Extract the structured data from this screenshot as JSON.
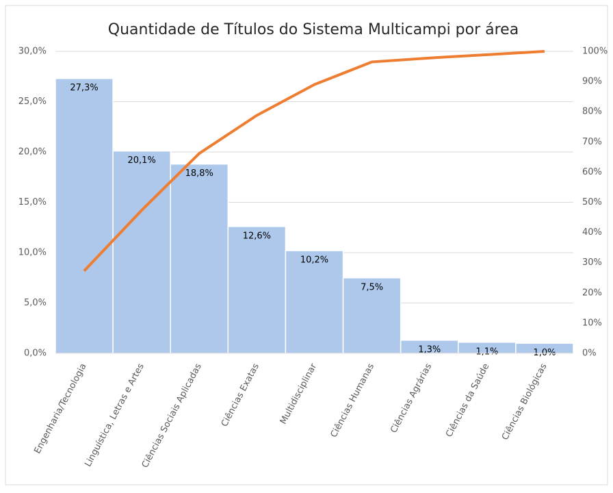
{
  "chart_data": {
    "type": "pareto",
    "title": "Quantidade de Títulos do Sistema Multicampi por área",
    "categories": [
      "Engenharia/Tecnologia",
      "Linguística, Letras e Artes",
      "Ciências Sociais Aplicadas",
      "Ciências Exatas",
      "Multidisciplinar",
      "Ciências Humanas",
      "Ciências Agrárias",
      "Ciências da Saúde",
      "Ciências Biológicas"
    ],
    "series": [
      {
        "type": "bar",
        "color": "#adc8ea",
        "values": [
          27.3,
          20.1,
          18.8,
          12.6,
          10.2,
          7.5,
          1.3,
          1.1,
          1.0
        ],
        "value_labels": [
          "27,3%",
          "20,1%",
          "18,8%",
          "12,6%",
          "10,2%",
          "7,5%",
          "1,3%",
          "1,1%",
          "1,0%"
        ]
      },
      {
        "type": "line",
        "color": "#ed7d31",
        "axis": "y2",
        "values": [
          27.3,
          47.4,
          66.2,
          78.8,
          89,
          96.5,
          97.8,
          98.9,
          100
        ]
      }
    ],
    "ylim": [
      0,
      30
    ],
    "yticks": [
      {
        "value": 0,
        "label": "0,0%"
      },
      {
        "value": 5,
        "label": "5,0%"
      },
      {
        "value": 10,
        "label": "10,0%"
      },
      {
        "value": 15,
        "label": "15,0%"
      },
      {
        "value": 20,
        "label": "20,0%"
      },
      {
        "value": 25,
        "label": "25,0%"
      },
      {
        "value": 30,
        "label": "30,0%"
      }
    ],
    "y2lim": [
      0,
      100
    ],
    "y2ticks": [
      {
        "value": 0,
        "label": "0%"
      },
      {
        "value": 10,
        "label": "10%"
      },
      {
        "value": 20,
        "label": "20%"
      },
      {
        "value": 30,
        "label": "30%"
      },
      {
        "value": 40,
        "label": "40%"
      },
      {
        "value": 50,
        "label": "50%"
      },
      {
        "value": 60,
        "label": "60%"
      },
      {
        "value": 70,
        "label": "70%"
      },
      {
        "value": 80,
        "label": "80%"
      },
      {
        "value": 90,
        "label": "90%"
      },
      {
        "value": 100,
        "label": "100%"
      }
    ],
    "grid": true
  }
}
